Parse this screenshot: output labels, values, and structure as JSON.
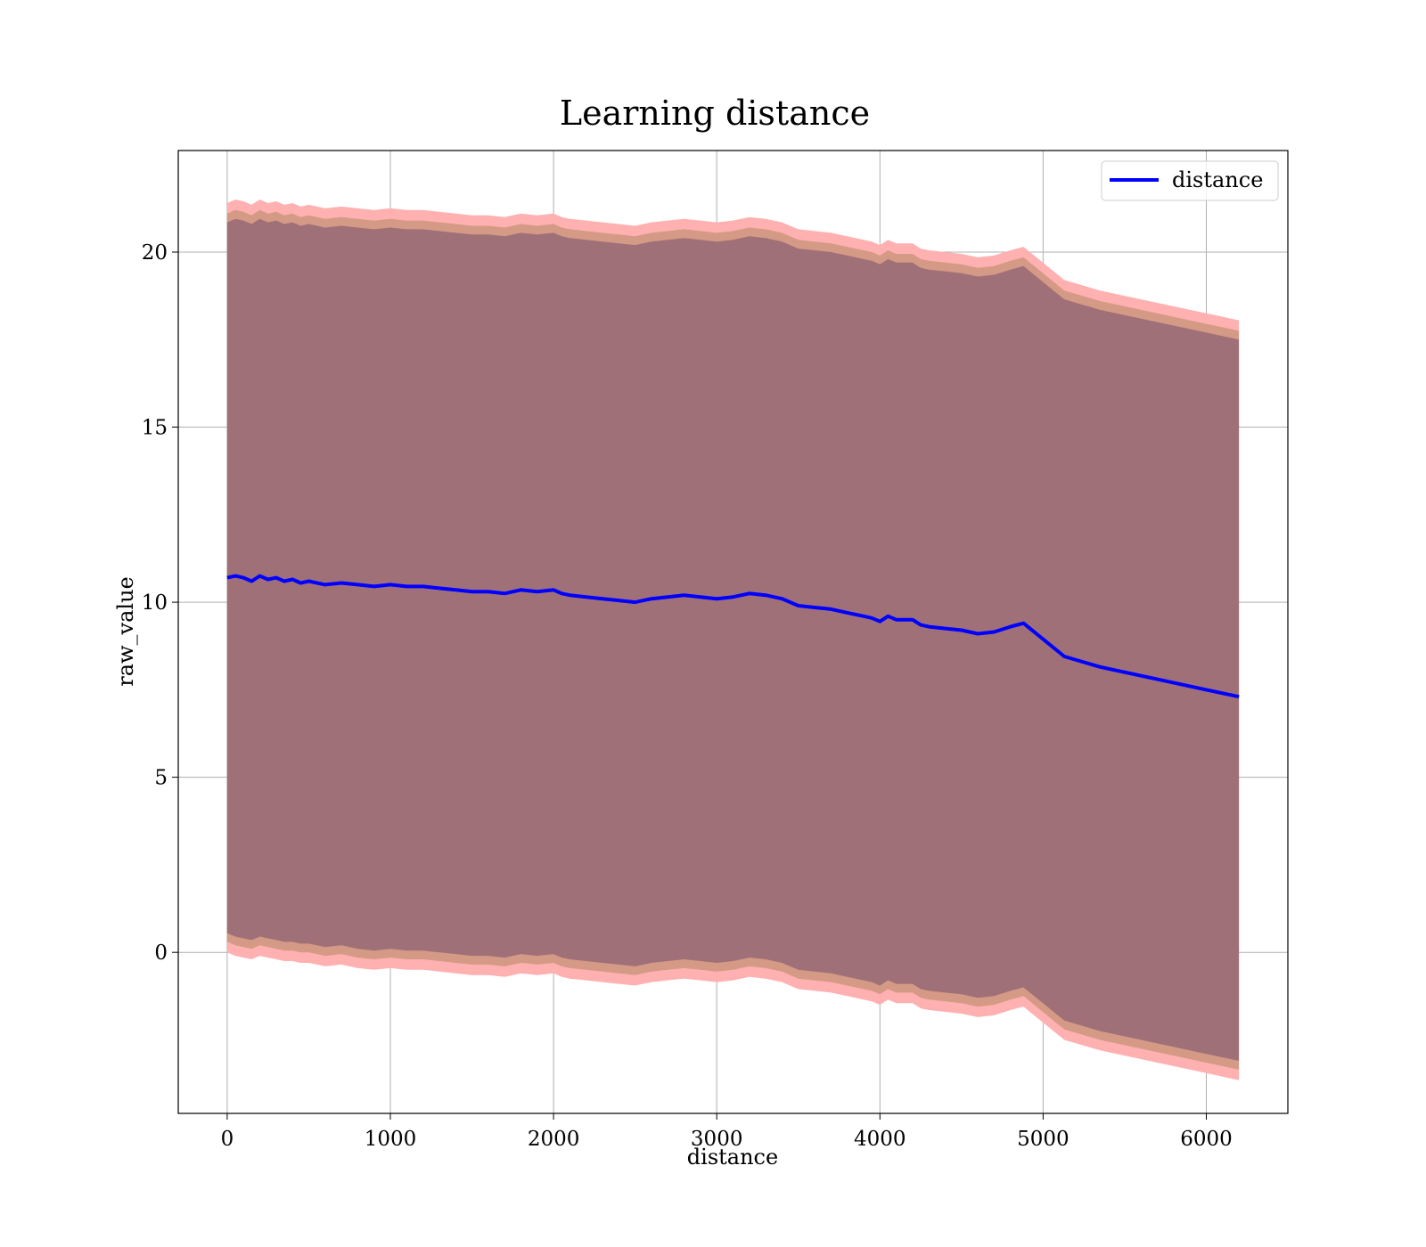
{
  "chart_data": {
    "type": "area",
    "title": "Learning distance",
    "xlabel": "distance",
    "ylabel": "raw_value",
    "xlim": [
      -300,
      6500
    ],
    "ylim": [
      -4.6,
      22.9
    ],
    "xticks": [
      0,
      1000,
      2000,
      3000,
      4000,
      5000,
      6000
    ],
    "yticks": [
      0,
      5,
      10,
      15,
      20
    ],
    "grid": true,
    "legend": {
      "position": "top-right",
      "entries": [
        "distance"
      ]
    },
    "colors": {
      "line": "#0000ff",
      "outer_band": "#ffb0b0",
      "middle_band": "#d49a85",
      "inner_band": "#a07078"
    },
    "series": [
      {
        "name": "distance",
        "x": [
          0,
          50,
          100,
          150,
          200,
          250,
          300,
          350,
          400,
          450,
          500,
          600,
          700,
          800,
          900,
          1000,
          1100,
          1200,
          1300,
          1400,
          1500,
          1600,
          1700,
          1800,
          1900,
          2000,
          2050,
          2100,
          2200,
          2300,
          2400,
          2500,
          2600,
          2700,
          2800,
          2900,
          3000,
          3100,
          3200,
          3300,
          3400,
          3500,
          3600,
          3700,
          3800,
          3900,
          3950,
          4000,
          4050,
          4100,
          4200,
          4250,
          4300,
          4400,
          4500,
          4600,
          4700,
          4800,
          4880,
          5130,
          5350,
          5700,
          6000,
          6200
        ],
        "y": [
          10.7,
          10.75,
          10.7,
          10.6,
          10.75,
          10.65,
          10.7,
          10.6,
          10.65,
          10.55,
          10.6,
          10.5,
          10.55,
          10.5,
          10.45,
          10.5,
          10.45,
          10.45,
          10.4,
          10.35,
          10.3,
          10.3,
          10.25,
          10.35,
          10.3,
          10.35,
          10.25,
          10.2,
          10.15,
          10.1,
          10.05,
          10.0,
          10.1,
          10.15,
          10.2,
          10.15,
          10.1,
          10.15,
          10.25,
          10.2,
          10.1,
          9.9,
          9.85,
          9.8,
          9.7,
          9.6,
          9.55,
          9.45,
          9.6,
          9.5,
          9.5,
          9.35,
          9.3,
          9.25,
          9.2,
          9.1,
          9.15,
          9.3,
          9.4,
          8.45,
          8.15,
          7.8,
          7.5,
          7.3
        ],
        "band_inner_lower": [
          0.55,
          0.45,
          0.4,
          0.35,
          0.45,
          0.4,
          0.35,
          0.3,
          0.3,
          0.25,
          0.25,
          0.15,
          0.2,
          0.1,
          0.05,
          0.1,
          0.05,
          0.05,
          0.0,
          -0.05,
          -0.1,
          -0.1,
          -0.15,
          -0.05,
          -0.1,
          -0.05,
          -0.15,
          -0.2,
          -0.25,
          -0.3,
          -0.35,
          -0.4,
          -0.3,
          -0.25,
          -0.2,
          -0.25,
          -0.3,
          -0.25,
          -0.15,
          -0.2,
          -0.3,
          -0.5,
          -0.55,
          -0.6,
          -0.7,
          -0.8,
          -0.85,
          -0.95,
          -0.8,
          -0.9,
          -0.9,
          -1.05,
          -1.1,
          -1.15,
          -1.2,
          -1.3,
          -1.25,
          -1.1,
          -1.0,
          -1.95,
          -2.25,
          -2.6,
          -2.9,
          -3.1
        ],
        "band_inner_upper": [
          20.85,
          20.95,
          20.9,
          20.8,
          20.95,
          20.85,
          20.9,
          20.8,
          20.85,
          20.75,
          20.8,
          20.7,
          20.75,
          20.7,
          20.65,
          20.7,
          20.65,
          20.65,
          20.6,
          20.55,
          20.5,
          20.5,
          20.45,
          20.55,
          20.5,
          20.55,
          20.45,
          20.4,
          20.35,
          20.3,
          20.25,
          20.2,
          20.3,
          20.35,
          20.4,
          20.35,
          20.3,
          20.35,
          20.45,
          20.4,
          20.3,
          20.1,
          20.05,
          20.0,
          19.9,
          19.8,
          19.75,
          19.65,
          19.8,
          19.7,
          19.7,
          19.55,
          19.5,
          19.45,
          19.4,
          19.3,
          19.35,
          19.5,
          19.6,
          18.65,
          18.35,
          18.0,
          17.7,
          17.5
        ],
        "band_middle_lower": [
          0.3,
          0.2,
          0.15,
          0.1,
          0.2,
          0.15,
          0.1,
          0.05,
          0.05,
          0.0,
          0.0,
          -0.1,
          -0.05,
          -0.15,
          -0.2,
          -0.15,
          -0.2,
          -0.2,
          -0.25,
          -0.3,
          -0.35,
          -0.35,
          -0.4,
          -0.3,
          -0.35,
          -0.3,
          -0.4,
          -0.45,
          -0.5,
          -0.55,
          -0.6,
          -0.65,
          -0.55,
          -0.5,
          -0.45,
          -0.5,
          -0.55,
          -0.5,
          -0.4,
          -0.45,
          -0.55,
          -0.75,
          -0.8,
          -0.85,
          -0.95,
          -1.05,
          -1.1,
          -1.2,
          -1.05,
          -1.15,
          -1.15,
          -1.3,
          -1.35,
          -1.4,
          -1.45,
          -1.55,
          -1.5,
          -1.35,
          -1.25,
          -2.2,
          -2.5,
          -2.85,
          -3.15,
          -3.35
        ],
        "band_middle_upper": [
          21.1,
          21.2,
          21.15,
          21.05,
          21.2,
          21.1,
          21.15,
          21.05,
          21.1,
          21.0,
          21.05,
          20.95,
          21.0,
          20.95,
          20.9,
          20.95,
          20.9,
          20.9,
          20.85,
          20.8,
          20.75,
          20.75,
          20.7,
          20.8,
          20.75,
          20.8,
          20.7,
          20.65,
          20.6,
          20.55,
          20.5,
          20.45,
          20.55,
          20.6,
          20.65,
          20.6,
          20.55,
          20.6,
          20.7,
          20.65,
          20.55,
          20.35,
          20.3,
          20.25,
          20.15,
          20.05,
          20.0,
          19.9,
          20.05,
          19.95,
          19.95,
          19.8,
          19.75,
          19.7,
          19.65,
          19.55,
          19.6,
          19.75,
          19.85,
          18.9,
          18.6,
          18.25,
          17.95,
          17.75
        ],
        "band_outer_lower": [
          0.0,
          -0.1,
          -0.15,
          -0.2,
          -0.1,
          -0.15,
          -0.2,
          -0.25,
          -0.25,
          -0.3,
          -0.3,
          -0.4,
          -0.35,
          -0.45,
          -0.5,
          -0.45,
          -0.5,
          -0.5,
          -0.55,
          -0.6,
          -0.65,
          -0.65,
          -0.7,
          -0.6,
          -0.65,
          -0.6,
          -0.7,
          -0.75,
          -0.8,
          -0.85,
          -0.9,
          -0.95,
          -0.85,
          -0.8,
          -0.75,
          -0.8,
          -0.85,
          -0.8,
          -0.7,
          -0.75,
          -0.85,
          -1.05,
          -1.1,
          -1.15,
          -1.25,
          -1.35,
          -1.4,
          -1.5,
          -1.35,
          -1.45,
          -1.45,
          -1.6,
          -1.65,
          -1.7,
          -1.75,
          -1.85,
          -1.8,
          -1.65,
          -1.55,
          -2.5,
          -2.8,
          -3.15,
          -3.45,
          -3.65
        ],
        "band_outer_upper": [
          21.4,
          21.5,
          21.45,
          21.35,
          21.5,
          21.4,
          21.45,
          21.35,
          21.4,
          21.3,
          21.35,
          21.25,
          21.3,
          21.25,
          21.2,
          21.25,
          21.2,
          21.2,
          21.15,
          21.1,
          21.05,
          21.05,
          21.0,
          21.1,
          21.05,
          21.1,
          21.0,
          20.95,
          20.9,
          20.85,
          20.8,
          20.75,
          20.85,
          20.9,
          20.95,
          20.9,
          20.85,
          20.9,
          21.0,
          20.95,
          20.85,
          20.65,
          20.6,
          20.55,
          20.45,
          20.35,
          20.3,
          20.2,
          20.35,
          20.25,
          20.25,
          20.1,
          20.05,
          20.0,
          19.95,
          19.85,
          19.9,
          20.05,
          20.15,
          19.2,
          18.9,
          18.55,
          18.25,
          18.05
        ]
      }
    ]
  }
}
